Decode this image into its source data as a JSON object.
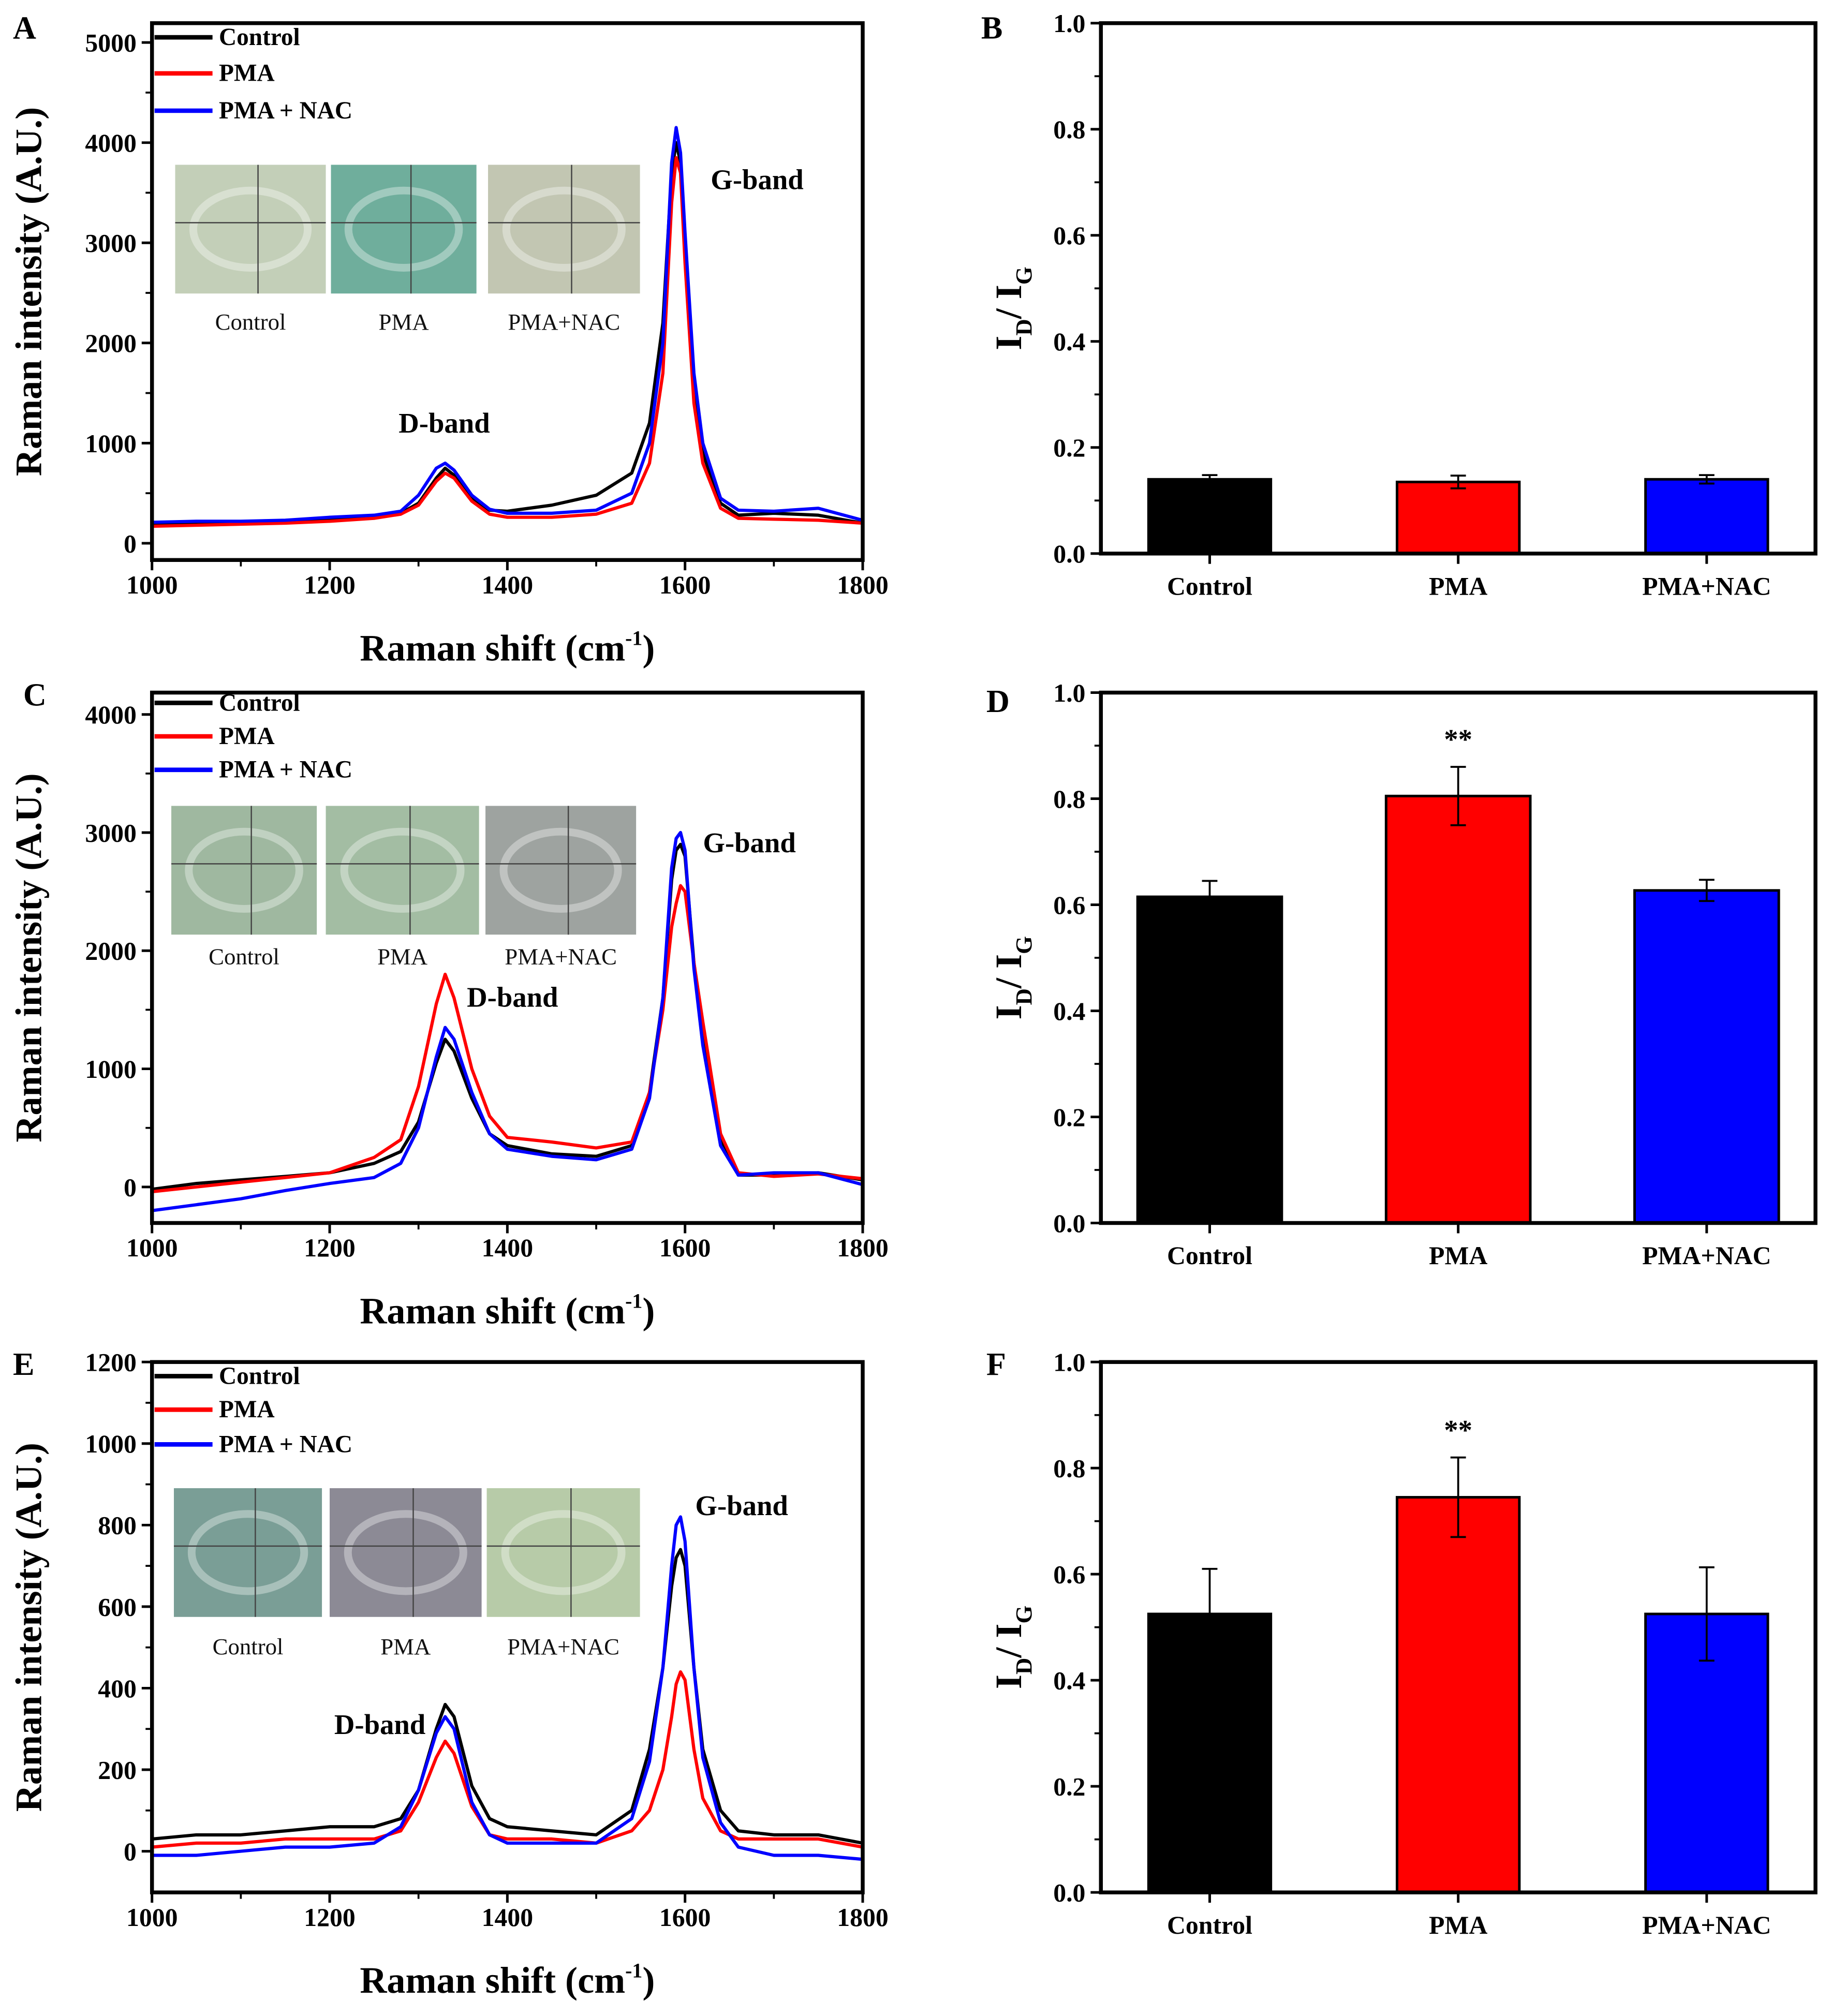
{
  "chart_data": [
    {
      "panel": "A",
      "type": "line",
      "xlabel": {
        "main": "Raman shift (cm",
        "sup": "-1",
        "close": ")"
      },
      "ylabel": "Raman intensity (A.U.)",
      "xlim": [
        1000,
        1800
      ],
      "ylim": [
        -167,
        5193
      ],
      "xticks": [
        "1000",
        "1200",
        "1400",
        "1600",
        "1800"
      ],
      "yticks": [
        "0",
        "1000",
        "2000",
        "3000",
        "4000",
        "5000"
      ],
      "annotations": {
        "d_band": "D-band",
        "g_band": "G-band"
      },
      "insets": [
        "Control",
        "PMA",
        "PMA+NAC"
      ],
      "x": [
        1000,
        1050,
        1100,
        1150,
        1200,
        1250,
        1280,
        1300,
        1320,
        1330,
        1340,
        1360,
        1380,
        1400,
        1450,
        1500,
        1540,
        1560,
        1575,
        1585,
        1590,
        1595,
        1600,
        1610,
        1620,
        1640,
        1660,
        1700,
        1750,
        1800
      ],
      "series": [
        {
          "name": "Control",
          "color": "#000000",
          "values": [
            180,
            200,
            210,
            220,
            240,
            260,
            300,
            400,
            650,
            750,
            680,
            450,
            330,
            320,
            380,
            480,
            700,
            1200,
            2200,
            3700,
            4000,
            3800,
            3000,
            1600,
            900,
            400,
            280,
            300,
            280,
            200
          ]
        },
        {
          "name": "PMA",
          "color": "#ff0000",
          "values": [
            170,
            180,
            190,
            200,
            220,
            250,
            290,
            380,
            620,
            700,
            650,
            420,
            290,
            260,
            260,
            290,
            400,
            800,
            1700,
            3400,
            3850,
            3700,
            2800,
            1400,
            800,
            350,
            250,
            240,
            230,
            200
          ]
        },
        {
          "name": "PMA + NAC",
          "color": "#0000ff",
          "values": [
            210,
            220,
            220,
            230,
            260,
            280,
            320,
            480,
            750,
            800,
            730,
            480,
            340,
            300,
            300,
            330,
            500,
            1000,
            2000,
            3800,
            4150,
            3900,
            3100,
            1700,
            1000,
            450,
            330,
            320,
            350,
            230
          ]
        }
      ]
    },
    {
      "panel": "B",
      "type": "bar",
      "ylabel": {
        "i1": "I",
        "sub1": "D",
        "sep": "/ I",
        "sub2": "G"
      },
      "ylim": [
        0,
        1.0
      ],
      "yticks": [
        "0.0",
        "0.2",
        "0.4",
        "0.6",
        "0.8",
        "1.0"
      ],
      "categories": [
        "Control",
        "PMA",
        "PMA+NAC"
      ],
      "values": [
        0.14,
        0.135,
        0.14
      ],
      "errors": [
        0.008,
        0.012,
        0.008
      ],
      "colors": [
        "#000000",
        "#ff0000",
        "#0000ff"
      ],
      "significance": [
        "",
        "",
        ""
      ]
    },
    {
      "panel": "C",
      "type": "line",
      "xlabel": {
        "main": "Raman shift (cm",
        "sup": "-1",
        "close": ")"
      },
      "ylabel": "Raman intensity (A.U.)",
      "xlim": [
        1000,
        1800
      ],
      "ylim": [
        -305,
        4185
      ],
      "xticks": [
        "1000",
        "1200",
        "1400",
        "1600",
        "1800"
      ],
      "yticks": [
        "0",
        "1000",
        "2000",
        "3000",
        "4000"
      ],
      "annotations": {
        "d_band": "D-band",
        "g_band": "G-band"
      },
      "insets": [
        "Control",
        "PMA",
        "PMA+NAC"
      ],
      "x": [
        1000,
        1050,
        1100,
        1150,
        1200,
        1250,
        1280,
        1300,
        1320,
        1330,
        1340,
        1360,
        1380,
        1400,
        1450,
        1500,
        1540,
        1560,
        1575,
        1585,
        1590,
        1595,
        1600,
        1610,
        1620,
        1640,
        1660,
        1700,
        1750,
        1800
      ],
      "series": [
        {
          "name": "Control",
          "color": "#000000",
          "values": [
            -20,
            30,
            60,
            90,
            120,
            200,
            300,
            550,
            1050,
            1250,
            1150,
            750,
            450,
            350,
            280,
            260,
            350,
            800,
            1600,
            2600,
            2850,
            2900,
            2800,
            1900,
            1300,
            400,
            100,
            100,
            120,
            60
          ]
        },
        {
          "name": "PMA",
          "color": "#ff0000",
          "values": [
            -40,
            0,
            40,
            80,
            120,
            250,
            400,
            850,
            1550,
            1800,
            1600,
            1000,
            600,
            420,
            380,
            330,
            380,
            800,
            1500,
            2200,
            2400,
            2550,
            2500,
            1900,
            1400,
            450,
            120,
            90,
            110,
            70
          ]
        },
        {
          "name": "PMA + NAC",
          "color": "#0000ff",
          "values": [
            -200,
            -150,
            -100,
            -30,
            30,
            80,
            200,
            500,
            1100,
            1350,
            1250,
            800,
            450,
            320,
            260,
            230,
            320,
            750,
            1600,
            2700,
            2950,
            3000,
            2850,
            1850,
            1200,
            350,
            100,
            120,
            120,
            20
          ]
        }
      ]
    },
    {
      "panel": "D",
      "type": "bar",
      "ylabel": {
        "i1": "I",
        "sub1": "D",
        "sep": "/ I",
        "sub2": "G"
      },
      "ylim": [
        0,
        1.0
      ],
      "yticks": [
        "0.0",
        "0.2",
        "0.4",
        "0.6",
        "0.8",
        "1.0"
      ],
      "categories": [
        "Control",
        "PMA",
        "PMA+NAC"
      ],
      "values": [
        0.615,
        0.805,
        0.627
      ],
      "errors": [
        0.03,
        0.055,
        0.02
      ],
      "colors": [
        "#000000",
        "#ff0000",
        "#0000ff"
      ],
      "significance": [
        "",
        "**",
        ""
      ]
    },
    {
      "panel": "E",
      "type": "line",
      "xlabel": {
        "main": "Raman shift (cm",
        "sup": "-1",
        "close": ")"
      },
      "ylabel": "Raman intensity (A.U.)",
      "xlim": [
        1000,
        1800
      ],
      "ylim": [
        -101,
        1200
      ],
      "xticks": [
        "1000",
        "1200",
        "1400",
        "1600",
        "1800"
      ],
      "yticks": [
        "0",
        "200",
        "400",
        "600",
        "800",
        "1000",
        "1200"
      ],
      "annotations": {
        "d_band": "D-band",
        "g_band": "G-band"
      },
      "insets": [
        "Control",
        "PMA",
        "PMA+NAC"
      ],
      "x": [
        1000,
        1050,
        1100,
        1150,
        1200,
        1250,
        1280,
        1300,
        1320,
        1330,
        1340,
        1360,
        1380,
        1400,
        1450,
        1500,
        1540,
        1560,
        1575,
        1585,
        1590,
        1595,
        1600,
        1610,
        1620,
        1640,
        1660,
        1700,
        1750,
        1800
      ],
      "series": [
        {
          "name": "Control",
          "color": "#000000",
          "values": [
            30,
            40,
            40,
            50,
            60,
            60,
            80,
            150,
            300,
            360,
            330,
            160,
            80,
            60,
            50,
            40,
            100,
            250,
            450,
            650,
            720,
            740,
            700,
            450,
            250,
            100,
            50,
            40,
            40,
            20
          ]
        },
        {
          "name": "PMA",
          "color": "#ff0000",
          "values": [
            10,
            20,
            20,
            30,
            30,
            30,
            50,
            120,
            230,
            270,
            240,
            110,
            40,
            30,
            30,
            20,
            50,
            100,
            200,
            330,
            410,
            440,
            420,
            250,
            130,
            50,
            30,
            30,
            30,
            10
          ]
        },
        {
          "name": "PMA + NAC",
          "color": "#0000ff",
          "values": [
            -10,
            -10,
            0,
            10,
            10,
            20,
            60,
            150,
            290,
            330,
            300,
            120,
            40,
            20,
            20,
            20,
            80,
            220,
            450,
            700,
            800,
            820,
            760,
            450,
            230,
            70,
            10,
            -10,
            -10,
            -20
          ]
        }
      ]
    },
    {
      "panel": "F",
      "type": "bar",
      "ylabel": {
        "i1": "I",
        "sub1": "D",
        "sep": "/ I",
        "sub2": "G"
      },
      "ylim": [
        0,
        1.0
      ],
      "yticks": [
        "0.0",
        "0.2",
        "0.4",
        "0.6",
        "0.8",
        "1.0"
      ],
      "categories": [
        "Control",
        "PMA",
        "PMA+NAC"
      ],
      "values": [
        0.525,
        0.745,
        0.525
      ],
      "errors": [
        0.085,
        0.075,
        0.088
      ],
      "colors": [
        "#000000",
        "#ff0000",
        "#0000ff"
      ],
      "significance": [
        "",
        "**",
        ""
      ]
    }
  ]
}
